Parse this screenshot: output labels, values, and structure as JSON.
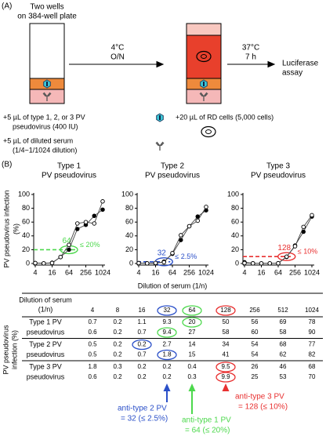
{
  "panel_a": {
    "label": "(A)",
    "plate": [
      "Two wells",
      "on 384-well plate"
    ],
    "step1": [
      "4°C",
      "O/N"
    ],
    "step2": [
      "37°C",
      "7 h"
    ],
    "readout": [
      "Luciferase",
      "assay"
    ],
    "virus": [
      "+5 µL of type 1, 2, or 3 PV",
      "pseudovirus (400 IU)"
    ],
    "serum": [
      "+5 µL of diluted serum",
      "(1/4~1/1024 dilution)"
    ],
    "cells": "+20 µL of RD cells (5,000 cells)"
  },
  "panel_b_label": "(B)",
  "chart_data": [
    {
      "type": "line",
      "title": "Type 1",
      "subtitle": "PV pseudovirus",
      "y_label": [
        "PV pseudovirus infection",
        "(%)"
      ],
      "x": [
        4,
        8,
        16,
        32,
        64,
        128,
        256,
        512,
        1024
      ],
      "log_x": true,
      "xlim": [
        4,
        1024
      ],
      "xticks": [
        4,
        16,
        64,
        256,
        1024
      ],
      "ylim": [
        0,
        100
      ],
      "yticks": [
        0,
        20,
        40,
        60,
        80,
        100
      ],
      "series": [
        {
          "marker": "filled",
          "color": "#000000",
          "values": [
            0.7,
            0.2,
            1.1,
            9.3,
            20,
            50,
            56,
            69,
            78
          ]
        },
        {
          "marker": "open",
          "color": "#000000",
          "values": [
            0.6,
            0.2,
            0.7,
            9.4,
            27,
            58,
            60,
            58,
            90
          ]
        }
      ],
      "color": "#4cd84c",
      "endpoint": 64,
      "threshold": {
        "value": 20,
        "label": "≤ 20%"
      }
    },
    {
      "type": "line",
      "title": "Type 2",
      "subtitle": "PV pseudovirus",
      "x_label": "Dilution of serum (1/n)",
      "x": [
        4,
        8,
        16,
        32,
        64,
        128,
        256,
        512,
        1024
      ],
      "log_x": true,
      "xlim": [
        4,
        1024
      ],
      "xticks": [
        4,
        16,
        64,
        256,
        1024
      ],
      "ylim": [
        0,
        100
      ],
      "yticks": [
        0,
        20,
        40,
        60,
        80,
        100
      ],
      "series": [
        {
          "marker": "filled",
          "color": "#000000",
          "values": [
            0.5,
            0.2,
            0.2,
            2.7,
            14,
            34,
            54,
            68,
            77
          ]
        },
        {
          "marker": "open",
          "color": "#000000",
          "values": [
            0.5,
            0.2,
            0.7,
            1.8,
            15,
            41,
            54,
            62,
            82
          ]
        }
      ],
      "color": "#2a4fc8",
      "endpoint": 32,
      "threshold": {
        "value": 2.5,
        "label": "≤ 2.5%"
      }
    },
    {
      "type": "line",
      "title": "Type 3",
      "subtitle": "PV pseudovirus",
      "x": [
        4,
        8,
        16,
        32,
        64,
        128,
        256,
        512,
        1024
      ],
      "log_x": true,
      "xlim": [
        4,
        1024
      ],
      "xticks": [
        4,
        16,
        64,
        256,
        1024
      ],
      "ylim": [
        0,
        100
      ],
      "yticks": [
        0,
        20,
        40,
        60,
        80,
        100
      ],
      "series": [
        {
          "marker": "filled",
          "color": "#000000",
          "values": [
            1.8,
            0.3,
            0.2,
            0.2,
            0.4,
            9.5,
            26,
            46,
            68
          ]
        },
        {
          "marker": "open",
          "color": "#000000",
          "values": [
            0.6,
            0.2,
            0.2,
            0.2,
            0.3,
            9.9,
            25,
            53,
            70
          ]
        }
      ],
      "color": "#e83030",
      "endpoint": 128,
      "threshold": {
        "value": 10,
        "label": "≤ 10%"
      }
    }
  ],
  "table": {
    "header": [
      "Dilution of serum",
      "(1/n)"
    ],
    "side_label": [
      "PV pseudovirus",
      "infection (%)"
    ],
    "columns": [
      4,
      8,
      16,
      32,
      64,
      128,
      256,
      512,
      1024
    ],
    "groups": [
      {
        "label": [
          "Type 1 PV",
          "pseudovirus"
        ],
        "rows": [
          [
            0.7,
            0.2,
            1.1,
            9.3,
            20,
            50,
            56,
            69,
            78
          ],
          [
            0.6,
            0.2,
            0.7,
            9.4,
            27,
            58,
            60,
            58,
            90
          ]
        ]
      },
      {
        "label": [
          "Type 2 PV",
          "pseudovirus"
        ],
        "rows": [
          [
            0.5,
            0.2,
            0.2,
            2.7,
            14,
            34,
            54,
            68,
            77
          ],
          [
            0.5,
            0.2,
            0.7,
            1.8,
            15,
            41,
            54,
            62,
            82
          ]
        ]
      },
      {
        "label": [
          "Type 3 PV",
          "pseudovirus"
        ],
        "rows": [
          [
            1.8,
            0.3,
            0.2,
            0.2,
            0.4,
            9.5,
            26,
            46,
            68
          ],
          [
            0.6,
            0.2,
            0.2,
            0.2,
            0.3,
            9.9,
            25,
            53,
            70
          ]
        ]
      }
    ]
  },
  "annotations": [
    {
      "lines": [
        "anti-type 1 PV",
        "= 64 (≤ 20%)"
      ]
    },
    {
      "lines": [
        "anti-type 2 PV",
        "= 32 (≤ 2.5%)"
      ]
    },
    {
      "lines": [
        "anti-type 3 PV",
        "= 128 (≤ 10%)"
      ]
    }
  ]
}
